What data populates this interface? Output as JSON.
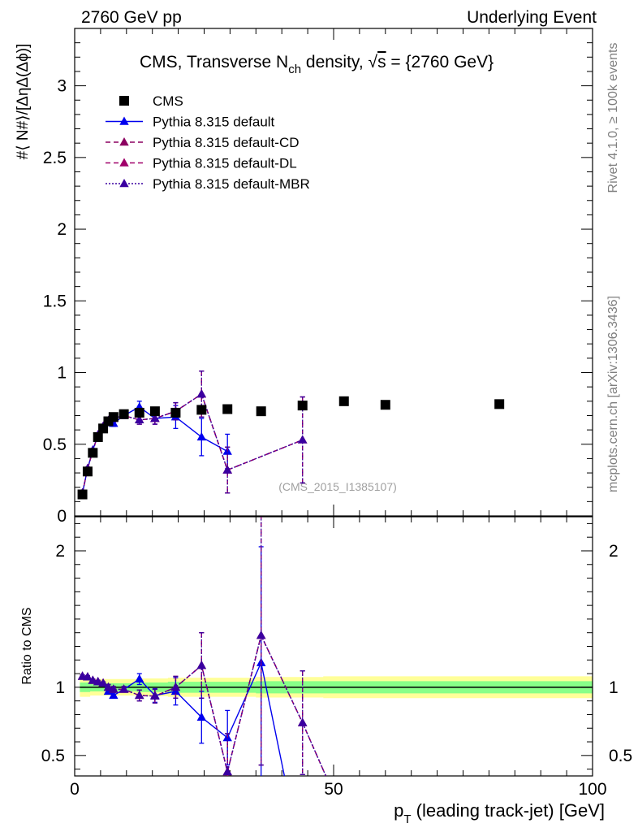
{
  "header": {
    "left": "2760 GeV pp",
    "right": "Underlying Event"
  },
  "side": {
    "rivet": "Rivet 4.1.0, ≥ 100k events",
    "mcplots": "mcplots.cern.ch [arXiv:1306.3436]"
  },
  "watermark": "(CMS_2015_I1385107)",
  "colors": {
    "data": "#000000",
    "default": "#0000ee",
    "cd": "#8b0060",
    "dl": "#a0006a",
    "mbr": "#3a00a0",
    "band_inner": "#88ff88",
    "band_outer": "#ffff99"
  },
  "chart_data": [
    {
      "type": "scatter",
      "panel": "main",
      "title": "CMS, Transverse N_ch density, √s = {2760 GeV}",
      "title_parts": {
        "pre": "CMS, Transverse N",
        "sub": "ch",
        "post": " density, ",
        "sqrt": "√",
        "s": "s",
        "eq": " = {2760 GeV}"
      },
      "ylabel": "#⟨ N#⟩/[ΔηΔ(Δϕ)]",
      "xlim": [
        0,
        100
      ],
      "ylim": [
        0,
        3.4
      ],
      "yticks": [
        {
          "value": 0,
          "label": "0"
        },
        {
          "value": 0.5,
          "label": "0.5"
        },
        {
          "value": 1,
          "label": "1"
        },
        {
          "value": 1.5,
          "label": "1.5"
        },
        {
          "value": 2,
          "label": "2"
        },
        {
          "value": 2.5,
          "label": "2.5"
        },
        {
          "value": 3,
          "label": "3"
        }
      ],
      "legend_position": "top-left",
      "series": [
        {
          "name": "CMS",
          "key": "data",
          "style": "square",
          "x": [
            1.5,
            2.5,
            3.5,
            4.5,
            5.5,
            6.5,
            7.5,
            9.5,
            12.5,
            15.5,
            19.5,
            24.5,
            29.5,
            36,
            44,
            52,
            60,
            82
          ],
          "y": [
            0.15,
            0.31,
            0.44,
            0.55,
            0.61,
            0.66,
            0.69,
            0.71,
            0.72,
            0.73,
            0.72,
            0.74,
            0.745,
            0.73,
            0.77,
            0.8,
            0.775,
            0.78
          ]
        },
        {
          "name": "Pythia 8.315 default",
          "key": "default",
          "style": "solid",
          "x": [
            1.5,
            2.5,
            3.5,
            4.5,
            5.5,
            6.5,
            7.5,
            9.5,
            12.5,
            15.5,
            19.5,
            24.5,
            29.5
          ],
          "y": [
            0.16,
            0.33,
            0.46,
            0.565,
            0.62,
            0.65,
            0.645,
            0.7,
            0.76,
            0.68,
            0.69,
            0.55,
            0.45
          ],
          "err": [
            0.01,
            0.01,
            0.01,
            0.01,
            0.01,
            0.01,
            0.02,
            0.02,
            0.04,
            0.04,
            0.08,
            0.13,
            0.12
          ]
        },
        {
          "name": "Pythia 8.315 default-CD",
          "key": "cd",
          "style": "dashed",
          "x": [
            1.5,
            2.5,
            3.5,
            4.5,
            5.5,
            6.5,
            7.5,
            9.5,
            12.5,
            15.5,
            19.5,
            24.5,
            29.5,
            44
          ],
          "y": [
            0.16,
            0.33,
            0.455,
            0.565,
            0.625,
            0.665,
            0.68,
            0.7,
            0.67,
            0.68,
            0.73,
            0.85,
            0.32,
            0.53
          ],
          "err": [
            0.01,
            0.01,
            0.01,
            0.01,
            0.01,
            0.01,
            0.02,
            0.02,
            0.03,
            0.04,
            0.06,
            0.16,
            0.16,
            0.3
          ]
        },
        {
          "name": "Pythia 8.315 default-DL",
          "key": "dl",
          "style": "dashed",
          "x": [
            1.5,
            2.5,
            3.5,
            4.5,
            5.5,
            6.5,
            7.5,
            9.5,
            12.5,
            15.5,
            19.5,
            24.5,
            29.5,
            44
          ],
          "y": [
            0.16,
            0.33,
            0.455,
            0.565,
            0.625,
            0.665,
            0.68,
            0.7,
            0.67,
            0.68,
            0.73,
            0.85,
            0.32,
            0.53
          ],
          "err": [
            0.01,
            0.01,
            0.01,
            0.01,
            0.01,
            0.01,
            0.02,
            0.02,
            0.03,
            0.04,
            0.06,
            0.16,
            0.16,
            0.3
          ]
        },
        {
          "name": "Pythia 8.315 default-MBR",
          "key": "mbr",
          "style": "dotted",
          "x": [
            1.5,
            2.5,
            3.5,
            4.5,
            5.5,
            6.5,
            7.5,
            9.5,
            12.5,
            15.5,
            19.5,
            24.5,
            29.5,
            44
          ],
          "y": [
            0.16,
            0.33,
            0.455,
            0.565,
            0.625,
            0.665,
            0.68,
            0.7,
            0.67,
            0.68,
            0.73,
            0.85,
            0.32,
            0.53
          ],
          "err": [
            0.01,
            0.01,
            0.01,
            0.01,
            0.01,
            0.01,
            0.02,
            0.02,
            0.03,
            0.04,
            0.06,
            0.16,
            0.16,
            0.3
          ]
        }
      ]
    },
    {
      "type": "line",
      "panel": "ratio",
      "ylabel": "Ratio to CMS",
      "xlabel": "p_T (leading track-jet) [GeV]",
      "xlabel_parts": {
        "p": "p",
        "sub": "T",
        "rest": " (leading track-jet) [GeV]"
      },
      "xlim": [
        0,
        100
      ],
      "ylim": [
        0.35,
        2.25
      ],
      "xticks": [
        {
          "value": 0,
          "label": "0"
        },
        {
          "value": 50,
          "label": "50"
        },
        {
          "value": 100,
          "label": "100"
        }
      ],
      "yticks": [
        {
          "value": 0.5,
          "label": "0.5"
        },
        {
          "value": 1,
          "label": "1"
        },
        {
          "value": 2,
          "label": "2"
        }
      ],
      "band": {
        "x": [
          1,
          3,
          5,
          8,
          12,
          18,
          25,
          35,
          48,
          100
        ],
        "inner": [
          0.035,
          0.03,
          0.03,
          0.03,
          0.035,
          0.04,
          0.04,
          0.045,
          0.045,
          0.045
        ],
        "outer": [
          0.07,
          0.06,
          0.06,
          0.06,
          0.065,
          0.07,
          0.07,
          0.075,
          0.08,
          0.08
        ]
      },
      "series": [
        {
          "name": "Pythia 8.315 default",
          "key": "default",
          "style": "solid",
          "x": [
            1.5,
            2.5,
            3.5,
            4.5,
            5.5,
            6.5,
            7.5,
            9.5,
            12.5,
            15.5,
            19.5,
            24.5,
            29.5,
            36,
            40.5
          ],
          "y": [
            1.08,
            1.075,
            1.05,
            1.04,
            1.03,
            0.97,
            0.94,
            0.985,
            1.06,
            0.94,
            0.97,
            0.78,
            0.63,
            1.18,
            0.35
          ],
          "err": [
            0.01,
            0.01,
            0.01,
            0.01,
            0.01,
            0.02,
            0.02,
            0.02,
            0.04,
            0.05,
            0.1,
            0.19,
            0.2,
            0.85,
            0
          ],
          "markers": [
            true,
            true,
            true,
            true,
            true,
            true,
            true,
            true,
            true,
            true,
            true,
            true,
            true,
            true,
            false
          ]
        },
        {
          "name": "Pythia 8.315 default-CD",
          "key": "cd",
          "style": "dashed",
          "x": [
            1.5,
            2.5,
            3.5,
            4.5,
            5.5,
            6.5,
            7.5,
            9.5,
            12.5,
            15.5,
            19.5,
            24.5,
            29.5,
            36,
            44,
            48.5
          ],
          "y": [
            1.08,
            1.075,
            1.05,
            1.04,
            1.03,
            1.0,
            0.985,
            0.985,
            0.94,
            0.935,
            1.0,
            1.16,
            0.38,
            1.38,
            0.74,
            0.35
          ],
          "err": [
            0.01,
            0.01,
            0.01,
            0.01,
            0.01,
            0.02,
            0.02,
            0.02,
            0.04,
            0.05,
            0.08,
            0.24,
            0.28,
            0.95,
            0.38,
            0
          ],
          "markers": [
            true,
            true,
            true,
            true,
            true,
            true,
            true,
            true,
            true,
            true,
            true,
            true,
            true,
            true,
            true,
            false
          ]
        },
        {
          "name": "Pythia 8.315 default-DL",
          "key": "dl",
          "style": "dashed",
          "x": [
            1.5,
            2.5,
            3.5,
            4.5,
            5.5,
            6.5,
            7.5,
            9.5,
            12.5,
            15.5,
            19.5,
            24.5,
            29.5,
            36,
            44,
            48.5
          ],
          "y": [
            1.08,
            1.075,
            1.05,
            1.04,
            1.03,
            1.0,
            0.985,
            0.985,
            0.94,
            0.935,
            1.0,
            1.16,
            0.38,
            1.38,
            0.74,
            0.35
          ],
          "err": [
            0.01,
            0.01,
            0.01,
            0.01,
            0.01,
            0.02,
            0.02,
            0.02,
            0.04,
            0.05,
            0.08,
            0.24,
            0.28,
            0.95,
            0.38,
            0
          ],
          "markers": [
            true,
            true,
            true,
            true,
            true,
            true,
            true,
            true,
            true,
            true,
            true,
            true,
            true,
            true,
            true,
            false
          ]
        },
        {
          "name": "Pythia 8.315 default-MBR",
          "key": "mbr",
          "style": "dotted",
          "x": [
            1.5,
            2.5,
            3.5,
            4.5,
            5.5,
            6.5,
            7.5,
            9.5,
            12.5,
            15.5,
            19.5,
            24.5,
            29.5,
            36,
            44,
            48.5
          ],
          "y": [
            1.08,
            1.075,
            1.05,
            1.04,
            1.03,
            1.0,
            0.985,
            0.985,
            0.94,
            0.935,
            1.0,
            1.16,
            0.38,
            1.38,
            0.74,
            0.35
          ],
          "err": [
            0.01,
            0.01,
            0.01,
            0.01,
            0.01,
            0.02,
            0.02,
            0.02,
            0.04,
            0.05,
            0.08,
            0.24,
            0.28,
            0.95,
            0.38,
            0
          ],
          "markers": [
            true,
            true,
            true,
            true,
            true,
            true,
            true,
            true,
            true,
            true,
            true,
            true,
            true,
            true,
            true,
            false
          ]
        }
      ]
    }
  ]
}
